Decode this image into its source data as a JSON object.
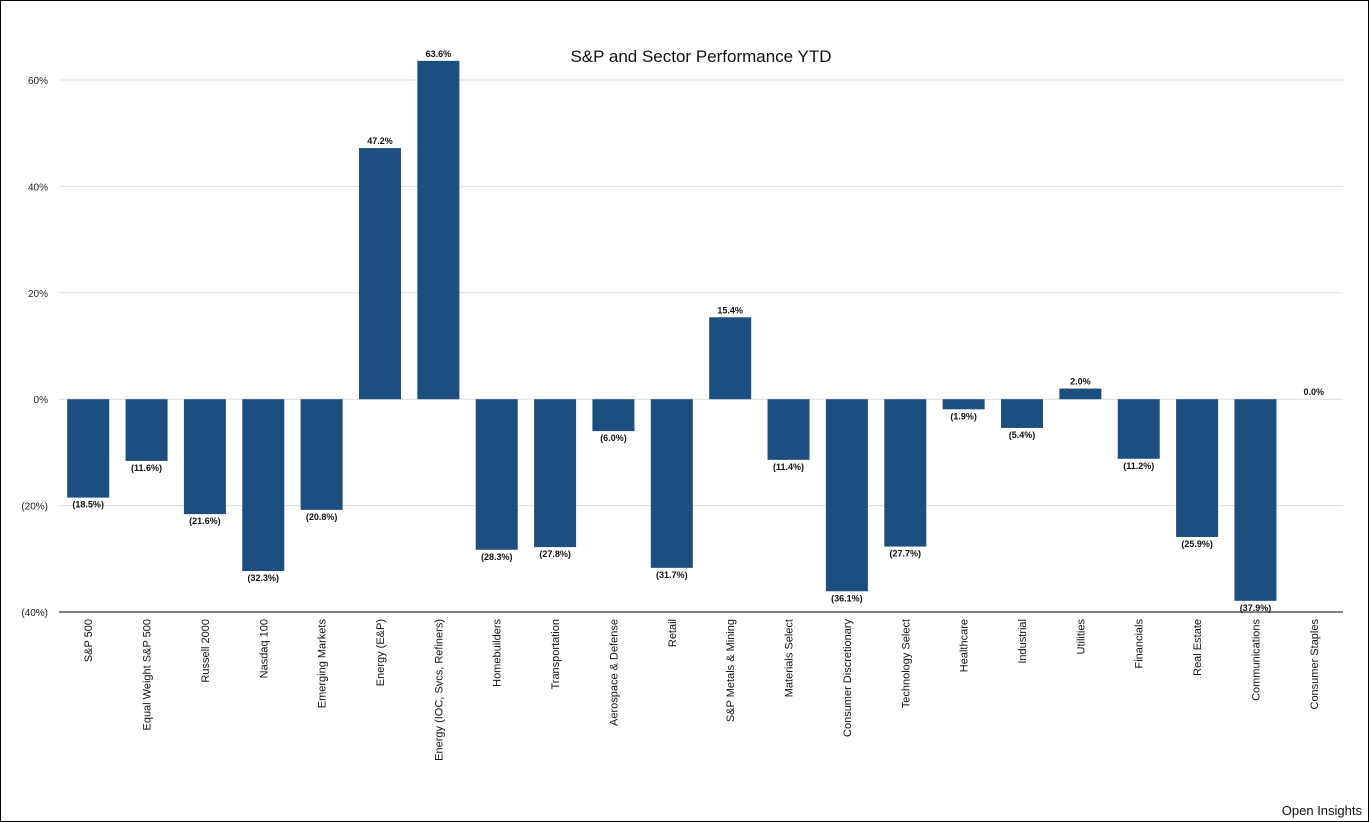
{
  "chart_data": {
    "type": "bar",
    "title": "S&P and Sector Performance YTD",
    "xlabel": "",
    "ylabel": "",
    "ylim": [
      -40,
      60
    ],
    "y_ticks": [
      60,
      40,
      20,
      0,
      -20,
      -40
    ],
    "y_tick_labels": [
      "60%",
      "40%",
      "20%",
      "0%",
      "(20%)",
      "(40%)"
    ],
    "grid": true,
    "legend": "none",
    "bar_color": "#1c4e80",
    "categories": [
      "S&P 500",
      "Equal Weight S&P 500",
      "Russell 2000",
      "Nasdaq 100",
      "Emerging Markets",
      "Energy (E&P)",
      "Energy (IOC, Svcs, Refiners)",
      "Homebuilders",
      "Transportation",
      "Aerospace & Defense",
      "Retail",
      "S&P Metals & Mining",
      "Materials Select",
      "Consumer Discretionary",
      "Technology Select",
      "Healthcare",
      "Industrial",
      "Utilities",
      "Financials",
      "Real Estate",
      "Communications",
      "Consumer Staples"
    ],
    "values": [
      -18.5,
      -11.6,
      -21.6,
      -32.3,
      -20.8,
      47.2,
      63.6,
      -28.3,
      -27.8,
      -6.0,
      -31.7,
      15.4,
      -11.4,
      -36.1,
      -27.7,
      -1.9,
      -5.4,
      2.0,
      -11.2,
      -25.9,
      -37.9,
      0.0
    ],
    "data_labels": [
      "(18.5%)",
      "(11.6%)",
      "(21.6%)",
      "(32.3%)",
      "(20.8%)",
      "47.2%",
      "63.6%",
      "(28.3%)",
      "(27.8%)",
      "(6.0%)",
      "(31.7%)",
      "15.4%",
      "(11.4%)",
      "(36.1%)",
      "(27.7%)",
      "(1.9%)",
      "(5.4%)",
      "2.0%",
      "(11.2%)",
      "(25.9%)",
      "(37.9%)",
      "0.0%"
    ]
  },
  "footer": {
    "credit": "Open Insights"
  }
}
